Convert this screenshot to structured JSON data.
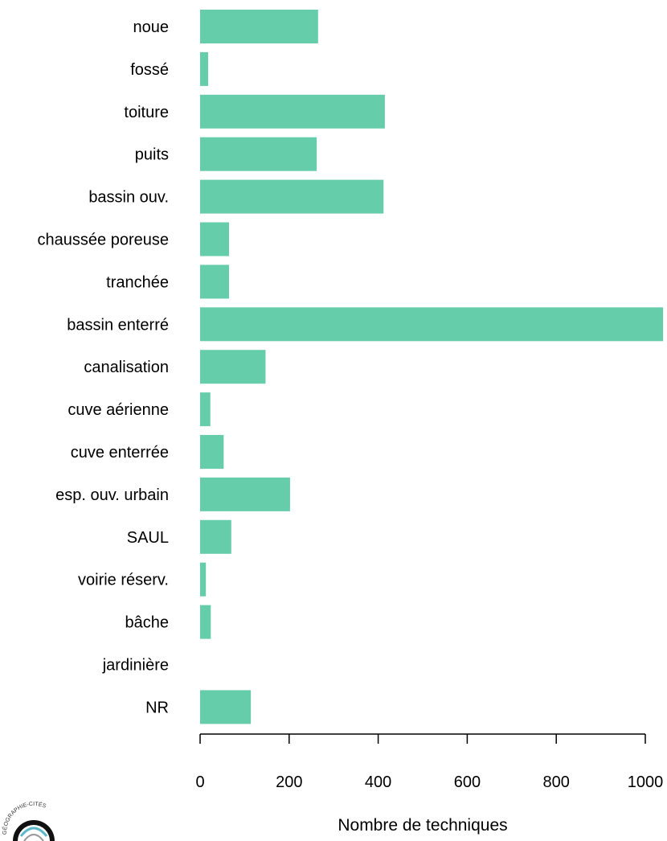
{
  "chart_data": {
    "type": "bar",
    "orientation": "horizontal",
    "categories": [
      "noue",
      "fossé",
      "toiture",
      "puits",
      "bassin ouv.",
      "chaussée poreuse",
      "tranchée",
      "bassin enterré",
      "canalisation",
      "cuve aérienne",
      "cuve enterrée",
      "esp. ouv. urbain",
      "SAUL",
      "voirie réserv.",
      "bâche",
      "jardinière",
      "NR"
    ],
    "values": [
      265,
      18,
      415,
      262,
      412,
      65,
      65,
      1040,
      147,
      23,
      53,
      202,
      70,
      13,
      24,
      0,
      114
    ],
    "xlabel": "Nombre de techniques",
    "ylabel": "",
    "title": "",
    "xlim": [
      0,
      1000
    ],
    "xticks": [
      0,
      200,
      400,
      600,
      800,
      1000
    ],
    "bar_color": "#66CDAA",
    "grid": false,
    "legend": "none"
  },
  "logo": {
    "icon": "geographie-cites-logo",
    "text": "GÉOGRAPHIE-CITÉS"
  }
}
